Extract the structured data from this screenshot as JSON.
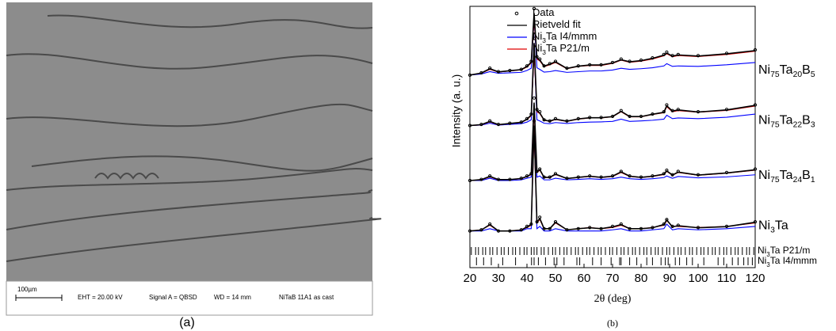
{
  "panel_a": {
    "scale_bar": "100µm",
    "eht": "EHT = 20.00 kV",
    "signal": "Signal A = QBSD",
    "wd": "WD =  14 mm",
    "sample": "NiTaB 11A1 as cast",
    "caption": "(a)"
  },
  "chart_data": {
    "type": "line",
    "caption": "(b)",
    "xlabel": "2θ (deg)",
    "ylabel": "Intensity (a. u.)",
    "xlim": [
      20,
      120
    ],
    "xticks": [
      20,
      30,
      40,
      50,
      60,
      70,
      80,
      90,
      100,
      110,
      120
    ],
    "ylim": [
      -14,
      100
    ],
    "x": [
      20,
      24,
      27,
      30,
      34,
      38,
      40,
      41.5,
      42.5,
      43.5,
      44.5,
      46,
      48,
      50,
      54,
      58,
      62,
      66,
      70,
      73,
      76,
      80,
      84,
      88,
      89,
      91,
      93,
      100,
      110,
      120
    ],
    "legend": [
      {
        "name": [
          "Data"
        ],
        "color": "#000000",
        "marker": "circle"
      },
      {
        "name": [
          "Rietveld fit"
        ],
        "color": "#000000"
      },
      {
        "name": [
          "Ni",
          "3",
          "Ta I4/mmm"
        ],
        "color": "#0000ff"
      },
      {
        "name": [
          "Ni",
          "3",
          "Ta P21/m"
        ],
        "color": "#e00000"
      }
    ],
    "patterns": [
      {
        "label": [
          "Ni",
          "3",
          "Ta"
        ],
        "values": [
          [
            2,
            2.5,
            5,
            2,
            2,
            2.5,
            4,
            5,
            50,
            6,
            8,
            3,
            3,
            6,
            2.5,
            3,
            3.5,
            3,
            4,
            5,
            3,
            3,
            3.5,
            5,
            7,
            4,
            4.5,
            3.5,
            4,
            6
          ],
          [
            2,
            2.4,
            4.8,
            2,
            2,
            2.4,
            3.8,
            4.8,
            48,
            5.8,
            7.5,
            3,
            3,
            5.8,
            2.5,
            3,
            3.4,
            3,
            3.8,
            4.8,
            3,
            3,
            3.4,
            4.8,
            6.8,
            3.8,
            4.3,
            3.4,
            3.9,
            5.8
          ],
          [
            2,
            2,
            3,
            2,
            2,
            2,
            3,
            3,
            48,
            3,
            4,
            2,
            2,
            3,
            2,
            2,
            2,
            2,
            2.5,
            3,
            2,
            2,
            2.5,
            3,
            5,
            2.5,
            3,
            2.5,
            3,
            4
          ],
          [
            2,
            2.5,
            4.5,
            2,
            2,
            2.5,
            3.5,
            4.5,
            45,
            5.5,
            7,
            3,
            3,
            5.5,
            2.5,
            3,
            3.5,
            3,
            3.5,
            4.5,
            3,
            3,
            3.5,
            4.5,
            6.5,
            4,
            4,
            3.5,
            4,
            5.5
          ]
        ]
      },
      {
        "label": [
          "Ni",
          "75",
          "Ta",
          "24",
          "B",
          "1"
        ],
        "values": [
          [
            24,
            24.5,
            26,
            24.5,
            24.5,
            25,
            26,
            27,
            60,
            28,
            29,
            25.5,
            25.5,
            27,
            25,
            25.5,
            26,
            25.5,
            26,
            28,
            26,
            25.5,
            26,
            27,
            28.5,
            26.5,
            28,
            26.5,
            27.5,
            29
          ],
          [
            24,
            24.4,
            25.8,
            24.4,
            24.4,
            24.9,
            25.8,
            26.8,
            58,
            27.8,
            28.8,
            25.4,
            25.4,
            26.8,
            24.9,
            25.4,
            25.9,
            25.4,
            25.9,
            27.8,
            25.9,
            25.4,
            25.9,
            26.8,
            28.2,
            26.4,
            27.7,
            26.4,
            27.3,
            28.7
          ],
          [
            24,
            24,
            25,
            24,
            24,
            24.3,
            25,
            25.5,
            57,
            25.5,
            26,
            24.3,
            24.3,
            25,
            24.3,
            24.5,
            24.8,
            24.5,
            24.8,
            25.5,
            24.8,
            24.5,
            24.8,
            25.3,
            26,
            25,
            25.8,
            25.2,
            25.6,
            26.5
          ],
          [
            24,
            24.3,
            25.6,
            24.3,
            24.4,
            24.8,
            25.7,
            26.6,
            55,
            27.5,
            28.5,
            25.3,
            25.3,
            26.6,
            24.9,
            25.3,
            25.8,
            25.3,
            25.8,
            27.5,
            25.8,
            25.3,
            25.8,
            26.6,
            28,
            26.3,
            27.5,
            26.3,
            27.2,
            28.5
          ]
        ]
      },
      {
        "label": [
          "Ni",
          "75",
          "Ta",
          "22",
          "B",
          "3"
        ],
        "values": [
          [
            48,
            48.5,
            50,
            48.5,
            49,
            49.5,
            51,
            53,
            86,
            55,
            54,
            50.5,
            50,
            51,
            50,
            51,
            51.5,
            51.5,
            52,
            54.5,
            52,
            52,
            53,
            54,
            57,
            54.5,
            55,
            54,
            55,
            57
          ],
          [
            48,
            48.4,
            49.8,
            48.4,
            48.9,
            49.4,
            50.8,
            52.6,
            84,
            54.5,
            53.5,
            50.4,
            49.9,
            50.8,
            49.9,
            50.9,
            51.4,
            51.4,
            51.9,
            54.2,
            51.9,
            51.9,
            52.9,
            53.8,
            56.6,
            54.3,
            54.8,
            53.9,
            54.8,
            56.8
          ],
          [
            48,
            48.2,
            49,
            48.2,
            48.5,
            48.8,
            49.5,
            50.5,
            82,
            50.5,
            50,
            49,
            48.8,
            49.3,
            48.9,
            49.3,
            49.5,
            49.6,
            49.8,
            50.8,
            49.8,
            50,
            50.3,
            50.8,
            52.5,
            51,
            51.3,
            51,
            51.6,
            53
          ],
          [
            48,
            48.3,
            49.6,
            48.3,
            48.8,
            49.3,
            50.6,
            52.3,
            80,
            54,
            53.2,
            50.3,
            49.8,
            50.6,
            49.8,
            50.8,
            51.3,
            51.3,
            51.8,
            54,
            51.8,
            51.8,
            52.8,
            53.6,
            56.2,
            54,
            54.5,
            53.8,
            54.6,
            56.5
          ]
        ]
      },
      {
        "label": [
          "Ni",
          "75",
          "Ta",
          "20",
          "B",
          "5"
        ],
        "values": [
          [
            70,
            71,
            73,
            71.5,
            72,
            72.5,
            74,
            76,
            99,
            78,
            77,
            74,
            75,
            76,
            73,
            74,
            74.5,
            74.5,
            75.5,
            77,
            76,
            76.5,
            77.5,
            79,
            80,
            78.5,
            79,
            78.5,
            79.5,
            81
          ],
          [
            70,
            70.9,
            72.8,
            71.4,
            71.9,
            72.4,
            73.8,
            75.6,
            97,
            77.5,
            76.6,
            73.9,
            74.8,
            75.8,
            72.9,
            73.9,
            74.4,
            74.4,
            75.3,
            76.7,
            75.8,
            76.3,
            77.3,
            78.7,
            79.6,
            78.3,
            78.8,
            78.3,
            79.3,
            80.7
          ],
          [
            70,
            70.5,
            71.5,
            70.8,
            71,
            71.2,
            72,
            73,
            95,
            73.2,
            72.5,
            71.3,
            71.5,
            72,
            71.2,
            71.5,
            71.8,
            71.8,
            72.2,
            73,
            72.5,
            72.8,
            73.2,
            74,
            75,
            73.8,
            74,
            73.8,
            74.5,
            75.5
          ],
          [
            70,
            70.8,
            72.5,
            71.3,
            71.8,
            72.3,
            73.5,
            75.3,
            94,
            77,
            76.2,
            73.7,
            74.5,
            75.5,
            72.8,
            73.8,
            74.2,
            74.2,
            75.1,
            76.5,
            75.6,
            76.1,
            77,
            78.4,
            79.3,
            78,
            78.5,
            78.1,
            79,
            80.4
          ]
        ]
      }
    ],
    "reflections": [
      {
        "label": [
          "Ni",
          "3",
          "Ta P21/m"
        ],
        "positions": [
          20.5,
          22,
          23,
          24.5,
          25.5,
          27,
          28,
          29.5,
          31,
          32,
          33.5,
          35,
          36,
          37.5,
          39,
          40,
          41.5,
          42.5,
          43.5,
          45,
          46,
          47.5,
          49,
          50,
          51.5,
          53,
          54,
          55.5,
          57,
          58,
          59.5,
          61,
          62,
          63.5,
          65,
          66,
          67.5,
          69,
          70,
          71.5,
          73,
          74,
          75.5,
          77,
          78,
          79.5,
          81,
          82,
          83.5,
          85,
          86,
          87.5,
          89,
          90,
          91.5,
          93,
          94,
          95.5,
          97,
          98,
          99.5,
          101,
          102,
          103.5,
          105,
          106,
          107.5,
          109,
          110,
          111.5,
          113,
          114,
          115.5,
          117,
          118,
          119.5
        ]
      },
      {
        "label": [
          "Ni",
          "3",
          "Ta I4/mmm"
        ],
        "positions": [
          22.3,
          24.8,
          27.5,
          31.5,
          36,
          41.6,
          42.5,
          44,
          46.5,
          49.5,
          50.5,
          53,
          57.5,
          58.5,
          63,
          66,
          69.5,
          72.5,
          73,
          76,
          78.5,
          82,
          84,
          87,
          88.5,
          89.5,
          92,
          93.5,
          96,
          98,
          102,
          107,
          109,
          112,
          114,
          116,
          117.5,
          119
        ]
      }
    ]
  }
}
